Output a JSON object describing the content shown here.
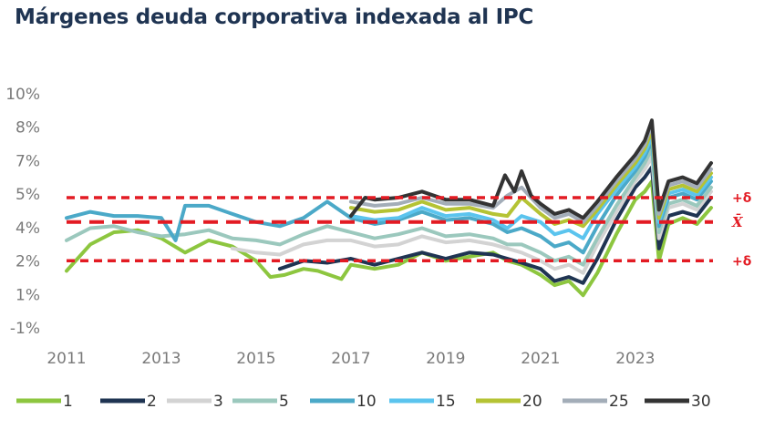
{
  "chart_data": {
    "type": "line",
    "title": "Márgenes deuda corporativa indexada al IPC",
    "xlabel": "",
    "ylabel": "",
    "x_ticks": [
      "2011",
      "2013",
      "2015",
      "2017",
      "2019",
      "2021",
      "2023"
    ],
    "y_ticks": [
      "10%",
      "8%",
      "7%",
      "5%",
      "4%",
      "2%",
      "1%",
      "-1%"
    ],
    "xlim": [
      2011.0,
      2024.6
    ],
    "ylim": [
      -1.1,
      10.4
    ],
    "grid": false,
    "legend_position": "bottom",
    "reference_lines": [
      {
        "label": "+δ",
        "value": 5.3
      },
      {
        "label": "X̄",
        "value": 4.1
      },
      {
        "label": "+δ",
        "value": 2.2
      }
    ],
    "reference_color": "#e31b23",
    "series": [
      {
        "name": "1",
        "color": "#8dc63f",
        "x": [
          2011.0,
          2011.5,
          2012.0,
          2012.5,
          2013.0,
          2013.5,
          2014.0,
          2014.5,
          2015.0,
          2015.3,
          2015.6,
          2016.0,
          2016.3,
          2016.8,
          2017.0,
          2017.5,
          2018.0,
          2018.5,
          2019.0,
          2019.5,
          2020.0,
          2020.3,
          2020.6,
          2021.0,
          2021.3,
          2021.6,
          2021.9,
          2022.2,
          2022.6,
          2023.0,
          2023.2,
          2023.35,
          2023.5,
          2023.7,
          2024.0,
          2024.3,
          2024.6
        ],
        "y": [
          1.7,
          3.0,
          3.6,
          3.7,
          3.3,
          2.6,
          3.2,
          2.9,
          2.2,
          1.4,
          1.5,
          1.8,
          1.7,
          1.3,
          2.0,
          1.8,
          2.0,
          2.6,
          2.2,
          2.4,
          2.6,
          2.2,
          2.0,
          1.5,
          1.0,
          1.2,
          0.5,
          1.6,
          3.5,
          5.2,
          5.6,
          6.1,
          2.2,
          4.0,
          4.3,
          4.0,
          4.8
        ]
      },
      {
        "name": "2",
        "color": "#1f3452",
        "x": [
          2015.5,
          2016.0,
          2016.5,
          2017.0,
          2017.5,
          2018.0,
          2018.5,
          2019.0,
          2019.5,
          2020.0,
          2020.3,
          2020.6,
          2021.0,
          2021.3,
          2021.6,
          2021.9,
          2022.2,
          2022.6,
          2023.0,
          2023.2,
          2023.35,
          2023.5,
          2023.7,
          2024.0,
          2024.3,
          2024.6
        ],
        "y": [
          1.8,
          2.2,
          2.1,
          2.3,
          2.0,
          2.3,
          2.6,
          2.3,
          2.6,
          2.5,
          2.3,
          2.1,
          1.8,
          1.2,
          1.4,
          1.1,
          2.3,
          4.2,
          5.8,
          6.3,
          6.8,
          2.8,
          4.4,
          4.6,
          4.4,
          5.3
        ]
      },
      {
        "name": "3",
        "color": "#d3d3d3",
        "x": [
          2014.5,
          2015.0,
          2015.5,
          2016.0,
          2016.5,
          2017.0,
          2017.5,
          2018.0,
          2018.5,
          2019.0,
          2019.5,
          2020.0,
          2020.3,
          2020.6,
          2021.0,
          2021.3,
          2021.6,
          2021.9,
          2022.2,
          2022.6,
          2023.0,
          2023.2,
          2023.35,
          2023.5,
          2023.7,
          2024.0,
          2024.3,
          2024.6
        ],
        "y": [
          2.8,
          2.6,
          2.5,
          3.0,
          3.2,
          3.2,
          2.9,
          3.0,
          3.4,
          3.1,
          3.2,
          3.0,
          2.8,
          2.6,
          2.2,
          1.8,
          2.0,
          1.6,
          3.0,
          4.6,
          6.1,
          6.7,
          7.3,
          3.3,
          4.8,
          5.0,
          4.7,
          5.6
        ]
      },
      {
        "name": "5",
        "color": "#9bc8bd",
        "x": [
          2011.0,
          2011.5,
          2012.0,
          2012.5,
          2013.0,
          2013.5,
          2014.0,
          2014.5,
          2015.0,
          2015.5,
          2016.0,
          2016.5,
          2017.0,
          2017.5,
          2018.0,
          2018.5,
          2019.0,
          2019.5,
          2020.0,
          2020.3,
          2020.6,
          2021.0,
          2021.3,
          2021.6,
          2021.9,
          2022.2,
          2022.6,
          2023.0,
          2023.2,
          2023.35,
          2023.5,
          2023.7,
          2024.0,
          2024.3,
          2024.6
        ],
        "y": [
          3.2,
          3.8,
          3.9,
          3.6,
          3.4,
          3.5,
          3.7,
          3.3,
          3.2,
          3.0,
          3.5,
          3.9,
          3.6,
          3.3,
          3.5,
          3.8,
          3.4,
          3.5,
          3.3,
          3.0,
          3.0,
          2.6,
          2.2,
          2.4,
          2.0,
          3.3,
          4.9,
          6.3,
          7.0,
          7.7,
          3.6,
          5.0,
          5.2,
          4.9,
          5.8
        ]
      },
      {
        "name": "10",
        "color": "#4ba9c8",
        "x": [
          2011.0,
          2011.5,
          2012.0,
          2012.5,
          2013.0,
          2013.3,
          2013.5,
          2014.0,
          2014.5,
          2015.0,
          2015.5,
          2016.0,
          2016.5,
          2017.0,
          2017.5,
          2018.0,
          2018.5,
          2019.0,
          2019.5,
          2020.0,
          2020.3,
          2020.6,
          2021.0,
          2021.3,
          2021.6,
          2021.9,
          2022.2,
          2022.6,
          2023.0,
          2023.2,
          2023.35,
          2023.5,
          2023.7,
          2024.0,
          2024.3,
          2024.6
        ],
        "y": [
          4.3,
          4.6,
          4.4,
          4.4,
          4.3,
          3.2,
          4.9,
          4.9,
          4.5,
          4.1,
          3.9,
          4.3,
          5.1,
          4.3,
          4.0,
          4.2,
          4.6,
          4.2,
          4.3,
          4.0,
          3.6,
          3.8,
          3.4,
          2.9,
          3.1,
          2.6,
          3.9,
          5.4,
          6.6,
          7.3,
          8.1,
          3.9,
          5.3,
          5.5,
          5.2,
          6.1
        ]
      },
      {
        "name": "15",
        "color": "#5bc4ee",
        "x": [
          2017.0,
          2017.5,
          2018.0,
          2018.5,
          2019.0,
          2019.5,
          2020.0,
          2020.3,
          2020.6,
          2021.0,
          2021.3,
          2021.6,
          2021.9,
          2022.2,
          2022.6,
          2023.0,
          2023.2,
          2023.35,
          2023.5,
          2023.7,
          2024.0,
          2024.3,
          2024.6
        ],
        "y": [
          4.4,
          4.2,
          4.3,
          4.8,
          4.4,
          4.5,
          4.2,
          3.8,
          4.4,
          4.1,
          3.5,
          3.7,
          3.3,
          4.5,
          5.7,
          6.8,
          7.5,
          8.3,
          4.1,
          5.5,
          5.7,
          5.4,
          6.3
        ]
      },
      {
        "name": "20",
        "color": "#b5c334",
        "x": [
          2017.0,
          2017.5,
          2018.0,
          2018.5,
          2019.0,
          2019.5,
          2020.0,
          2020.3,
          2020.6,
          2021.0,
          2021.3,
          2021.6,
          2021.9,
          2022.2,
          2022.6,
          2023.0,
          2023.2,
          2023.35,
          2023.5,
          2023.7,
          2024.0,
          2024.3,
          2024.6
        ],
        "y": [
          4.8,
          4.6,
          4.7,
          5.1,
          4.7,
          4.8,
          4.5,
          4.4,
          5.3,
          4.5,
          4.0,
          4.2,
          3.9,
          4.7,
          5.9,
          7.0,
          7.7,
          8.6,
          4.3,
          5.7,
          5.9,
          5.6,
          6.5
        ]
      },
      {
        "name": "25",
        "color": "#a3adb8",
        "x": [
          2017.0,
          2017.5,
          2018.0,
          2018.5,
          2019.0,
          2019.5,
          2020.0,
          2020.3,
          2020.6,
          2021.0,
          2021.3,
          2021.6,
          2021.9,
          2022.2,
          2022.6,
          2023.0,
          2023.2,
          2023.35,
          2023.5,
          2023.7,
          2024.0,
          2024.3,
          2024.6
        ],
        "y": [
          5.1,
          4.9,
          5.0,
          5.3,
          5.0,
          5.0,
          4.8,
          5.4,
          5.8,
          4.8,
          4.3,
          4.5,
          4.1,
          4.9,
          6.1,
          7.2,
          7.9,
          8.9,
          4.5,
          5.9,
          6.1,
          5.8,
          6.7
        ]
      },
      {
        "name": "30",
        "color": "#333333",
        "x": [
          2017.0,
          2017.3,
          2017.5,
          2018.0,
          2018.5,
          2019.0,
          2019.5,
          2020.0,
          2020.25,
          2020.45,
          2020.6,
          2020.8,
          2021.0,
          2021.3,
          2021.6,
          2021.9,
          2022.2,
          2022.6,
          2023.0,
          2023.2,
          2023.35,
          2023.5,
          2023.7,
          2024.0,
          2024.3,
          2024.6
        ],
        "y": [
          4.4,
          5.3,
          5.2,
          5.3,
          5.6,
          5.2,
          5.2,
          4.9,
          6.4,
          5.6,
          6.6,
          5.4,
          5.0,
          4.5,
          4.7,
          4.3,
          5.1,
          6.3,
          7.4,
          8.1,
          9.1,
          4.7,
          6.1,
          6.3,
          6.0,
          7.0
        ]
      }
    ]
  }
}
